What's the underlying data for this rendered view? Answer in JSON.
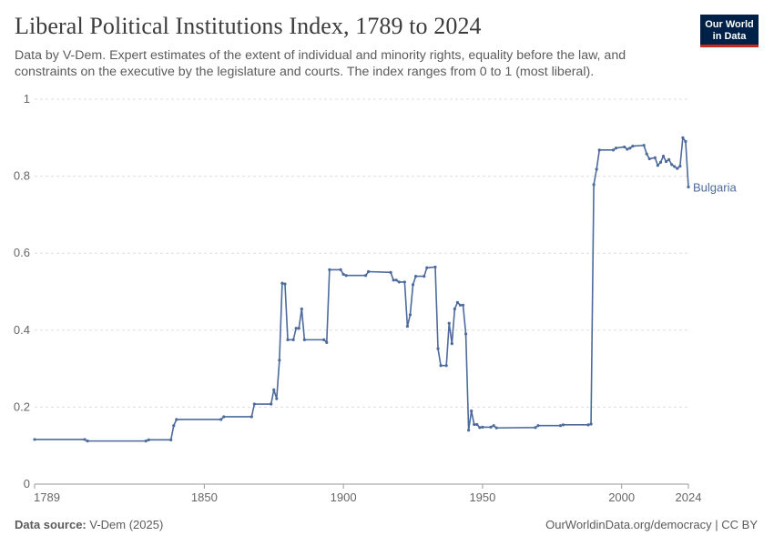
{
  "header": {
    "title": "Liberal Political Institutions Index, 1789 to 2024",
    "subtitle": "Data by V-Dem. Expert estimates of the extent of individual and minority rights, equality before the law, and constraints on the executive by the legislature and courts. The index ranges from 0 to 1 (most liberal).",
    "logo_line1": "Our World",
    "logo_line2": "in Data"
  },
  "footer": {
    "source_label": "Data source:",
    "source_value": "V-Dem (2025)",
    "link": "OurWorldinData.org/democracy | CC BY"
  },
  "colors": {
    "series": "#4c6a9c",
    "grid": "#dddddd",
    "logo_bg": "#002147",
    "logo_accent": "#ce261e"
  },
  "chart_data": {
    "type": "line",
    "title": "Liberal Political Institutions Index, 1789 to 2024",
    "xlabel": "",
    "ylabel": "",
    "xlim": [
      1789,
      2024
    ],
    "ylim": [
      0,
      1
    ],
    "x_ticks": [
      "1789",
      "1850",
      "1900",
      "1950",
      "2000",
      "2024"
    ],
    "y_ticks": [
      "0",
      "0.2",
      "0.4",
      "0.6",
      "0.8",
      "1"
    ],
    "series": [
      {
        "name": "Bulgaria",
        "points": [
          [
            1789,
            0.116
          ],
          [
            1807,
            0.116
          ],
          [
            1808,
            0.112
          ],
          [
            1829,
            0.112
          ],
          [
            1830,
            0.115
          ],
          [
            1838,
            0.115
          ],
          [
            1839,
            0.152
          ],
          [
            1840,
            0.168
          ],
          [
            1856,
            0.168
          ],
          [
            1857,
            0.175
          ],
          [
            1867,
            0.175
          ],
          [
            1868,
            0.208
          ],
          [
            1874,
            0.208
          ],
          [
            1875,
            0.245
          ],
          [
            1876,
            0.222
          ],
          [
            1877,
            0.322
          ],
          [
            1878,
            0.522
          ],
          [
            1879,
            0.52
          ],
          [
            1880,
            0.375
          ],
          [
            1882,
            0.375
          ],
          [
            1883,
            0.405
          ],
          [
            1884,
            0.405
          ],
          [
            1885,
            0.455
          ],
          [
            1886,
            0.375
          ],
          [
            1893,
            0.375
          ],
          [
            1894,
            0.368
          ],
          [
            1895,
            0.557
          ],
          [
            1899,
            0.557
          ],
          [
            1900,
            0.545
          ],
          [
            1901,
            0.542
          ],
          [
            1908,
            0.542
          ],
          [
            1909,
            0.552
          ],
          [
            1917,
            0.55
          ],
          [
            1918,
            0.53
          ],
          [
            1919,
            0.53
          ],
          [
            1920,
            0.525
          ],
          [
            1922,
            0.525
          ],
          [
            1923,
            0.41
          ],
          [
            1924,
            0.44
          ],
          [
            1925,
            0.518
          ],
          [
            1926,
            0.54
          ],
          [
            1929,
            0.54
          ],
          [
            1930,
            0.562
          ],
          [
            1933,
            0.564
          ],
          [
            1934,
            0.352
          ],
          [
            1935,
            0.308
          ],
          [
            1937,
            0.308
          ],
          [
            1938,
            0.418
          ],
          [
            1939,
            0.365
          ],
          [
            1940,
            0.455
          ],
          [
            1941,
            0.472
          ],
          [
            1942,
            0.465
          ],
          [
            1943,
            0.465
          ],
          [
            1944,
            0.39
          ],
          [
            1945,
            0.14
          ],
          [
            1946,
            0.19
          ],
          [
            1947,
            0.155
          ],
          [
            1948,
            0.155
          ],
          [
            1949,
            0.147
          ],
          [
            1950,
            0.148
          ],
          [
            1953,
            0.148
          ],
          [
            1954,
            0.152
          ],
          [
            1955,
            0.146
          ],
          [
            1969,
            0.147
          ],
          [
            1970,
            0.152
          ],
          [
            1978,
            0.152
          ],
          [
            1979,
            0.154
          ],
          [
            1988,
            0.154
          ],
          [
            1989,
            0.156
          ],
          [
            1990,
            0.778
          ],
          [
            1991,
            0.818
          ],
          [
            1992,
            0.868
          ],
          [
            1997,
            0.868
          ],
          [
            1998,
            0.873
          ],
          [
            2001,
            0.876
          ],
          [
            2002,
            0.87
          ],
          [
            2003,
            0.873
          ],
          [
            2004,
            0.878
          ],
          [
            2008,
            0.88
          ],
          [
            2009,
            0.858
          ],
          [
            2010,
            0.845
          ],
          [
            2012,
            0.848
          ],
          [
            2013,
            0.828
          ],
          [
            2014,
            0.836
          ],
          [
            2015,
            0.852
          ],
          [
            2016,
            0.838
          ],
          [
            2017,
            0.843
          ],
          [
            2018,
            0.83
          ],
          [
            2019,
            0.825
          ],
          [
            2020,
            0.82
          ],
          [
            2021,
            0.826
          ],
          [
            2022,
            0.9
          ],
          [
            2023,
            0.89
          ],
          [
            2024,
            0.772
          ]
        ]
      }
    ]
  }
}
